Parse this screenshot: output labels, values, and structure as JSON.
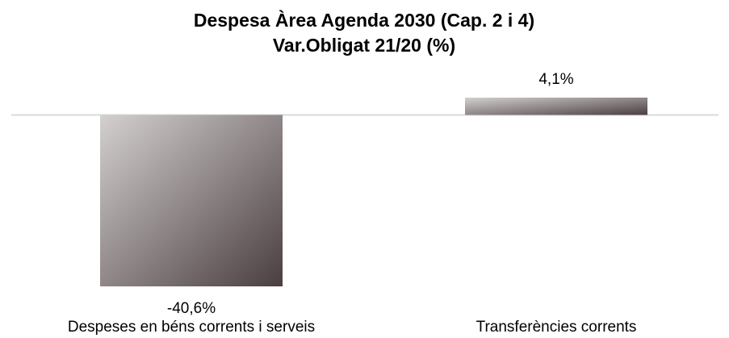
{
  "chart_data": {
    "type": "bar",
    "title": "Despesa Àrea Agenda 2030 (Cap. 2 i 4)",
    "subtitle": "Var.Obligat 21/20 (%)",
    "categories": [
      "Despeses en béns corrents i serveis",
      "Transferències corrents"
    ],
    "values": [
      -40.6,
      4.1
    ],
    "value_labels": [
      "-40,6%",
      "4,1%"
    ],
    "colors": [
      "#d4d0d0",
      "#4a3e40"
    ]
  }
}
